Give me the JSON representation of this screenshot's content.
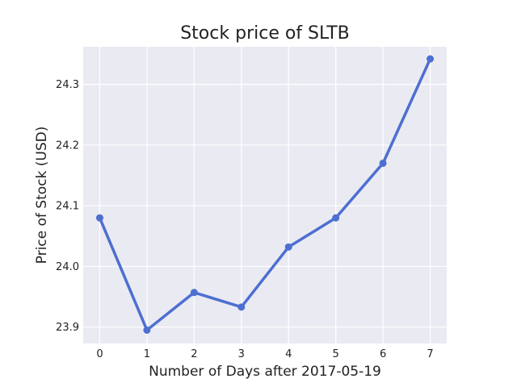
{
  "chart_data": {
    "type": "line",
    "title": "Stock price of SLTB",
    "xlabel": "Number of Days after 2017-05-19",
    "ylabel": "Price of Stock (USD)",
    "x": [
      0,
      1,
      2,
      3,
      4,
      5,
      6,
      7
    ],
    "series": [
      {
        "values": [
          24.08,
          23.895,
          23.957,
          23.933,
          24.032,
          24.08,
          24.17,
          24.342
        ]
      }
    ],
    "xlim": [
      -0.35,
      7.35
    ],
    "ylim": [
      23.873,
      24.362
    ],
    "xticks": [
      "0",
      "1",
      "2",
      "3",
      "4",
      "5",
      "6",
      "7"
    ],
    "yticks": [
      "23.9",
      "24.0",
      "24.1",
      "24.2",
      "24.3"
    ],
    "grid": true,
    "line_color": "#4c6fd1",
    "background_color": "#eaeaf2",
    "grid_color": "#ffffff"
  }
}
